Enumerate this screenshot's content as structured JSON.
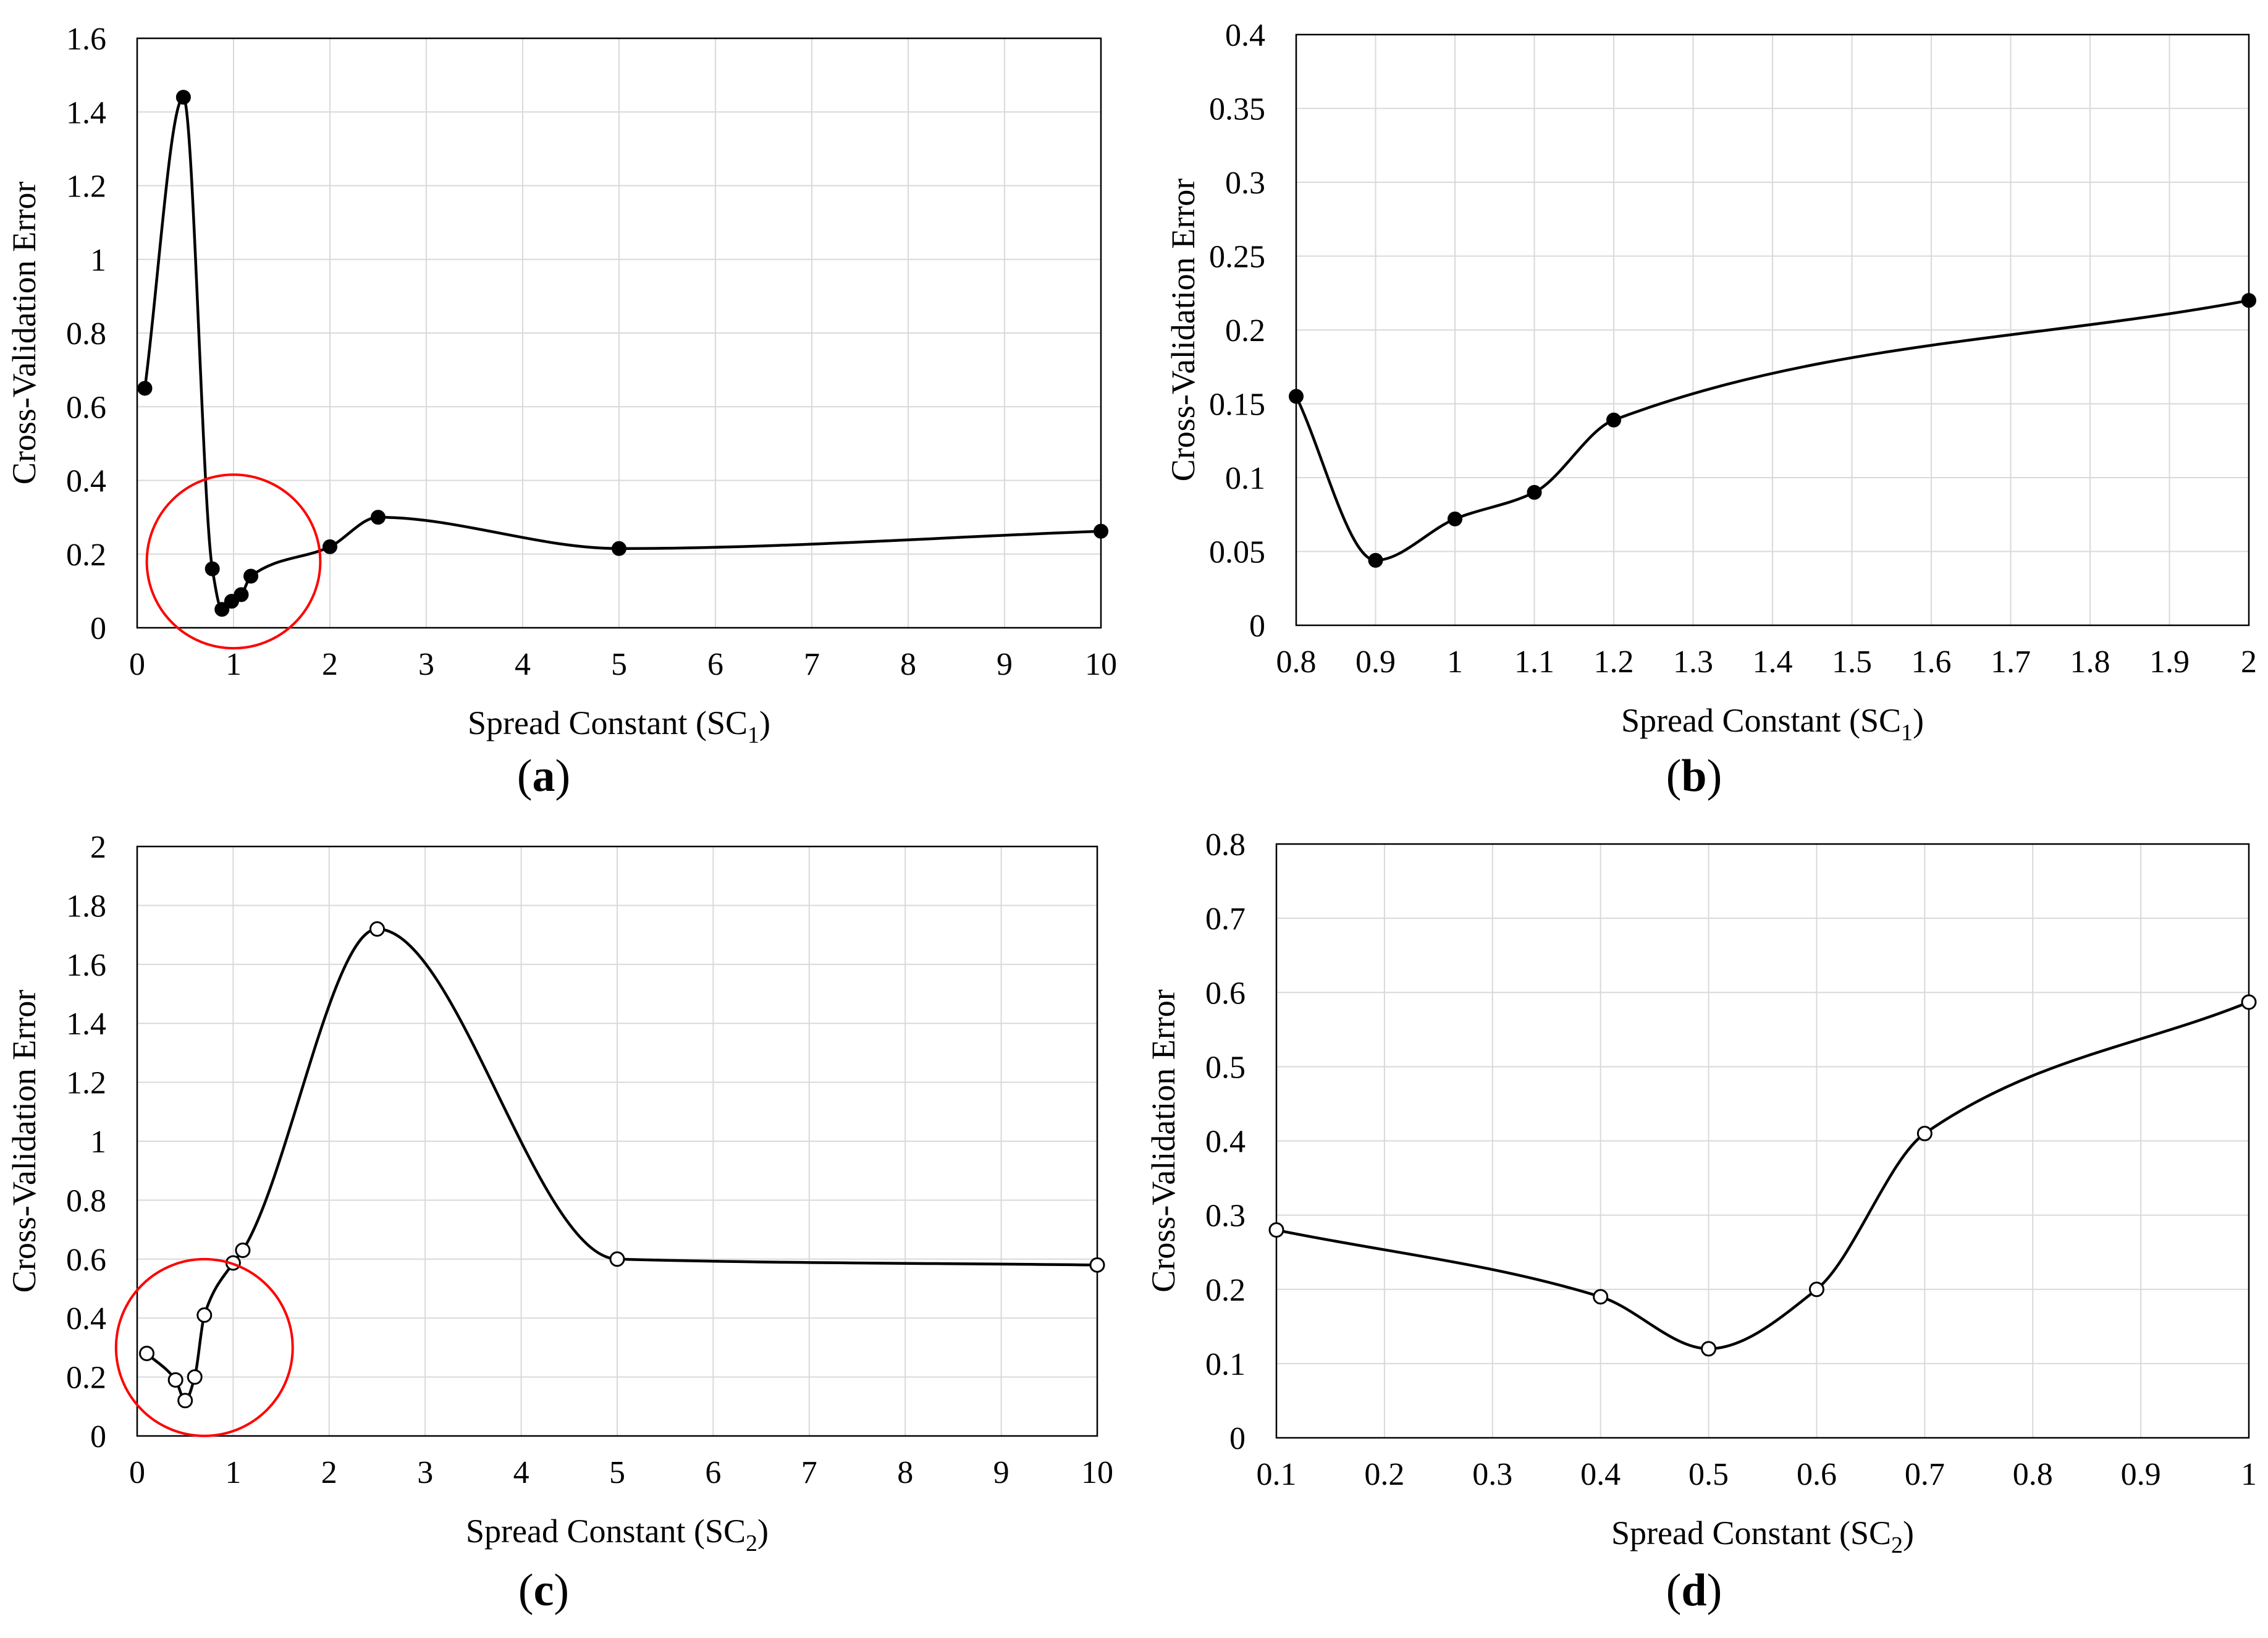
{
  "chart_data": [
    {
      "type": "line",
      "panel_label": "a",
      "xlabel": "Spread Constant (SC",
      "xlabel_sub": "1",
      "ylabel": "Cross-Validation Error",
      "xlim": [
        0,
        10
      ],
      "ylim": [
        0,
        1.6
      ],
      "xticks": [
        0,
        1,
        2,
        3,
        4,
        5,
        6,
        7,
        8,
        9,
        10
      ],
      "yticks": [
        0,
        0.2,
        0.4,
        0.6,
        0.8,
        1,
        1.2,
        1.4,
        1.6
      ],
      "marker": "filled",
      "grid": true,
      "series": [
        {
          "name": "SC1",
          "x": [
            0.08,
            0.48,
            0.78,
            0.88,
            0.98,
            1.08,
            1.18,
            2.0,
            2.5,
            5.0,
            10.0
          ],
          "y": [
            0.65,
            1.44,
            0.16,
            0.05,
            0.072,
            0.09,
            0.14,
            0.22,
            0.3,
            0.215,
            0.262
          ]
        }
      ],
      "highlight": {
        "shape": "circle",
        "color": "#ff0000",
        "cx": 1.0,
        "cy": 0.18,
        "r": 0.9
      }
    },
    {
      "type": "line",
      "panel_label": "b",
      "xlabel": "Spread Constant (SC",
      "xlabel_sub": "1",
      "ylabel": "Cross-Validation Error",
      "xlim": [
        0.8,
        2
      ],
      "ylim": [
        0,
        0.4
      ],
      "xticks": [
        0.8,
        0.9,
        1,
        1.1,
        1.2,
        1.3,
        1.4,
        1.5,
        1.6,
        1.7,
        1.8,
        1.9,
        2
      ],
      "yticks": [
        0,
        0.05,
        0.1,
        0.15,
        0.2,
        0.25,
        0.3,
        0.35,
        0.4
      ],
      "marker": "filled",
      "grid": true,
      "series": [
        {
          "name": "SC1",
          "x": [
            0.8,
            0.9,
            1.0,
            1.1,
            1.2,
            2.0
          ],
          "y": [
            0.155,
            0.044,
            0.072,
            0.09,
            0.139,
            0.22
          ]
        }
      ]
    },
    {
      "type": "line",
      "panel_label": "c",
      "xlabel": "Spread Constant (SC",
      "xlabel_sub": "2",
      "ylabel": "Cross-Validation Error",
      "xlim": [
        0,
        10
      ],
      "ylim": [
        0,
        2
      ],
      "xticks": [
        0,
        1,
        2,
        3,
        4,
        5,
        6,
        7,
        8,
        9,
        10
      ],
      "yticks": [
        0,
        0.2,
        0.4,
        0.6,
        0.8,
        1,
        1.2,
        1.4,
        1.6,
        1.8,
        2
      ],
      "marker": "open",
      "grid": true,
      "series": [
        {
          "name": "SC2",
          "x": [
            0.1,
            0.4,
            0.5,
            0.6,
            0.7,
            1.0,
            1.1,
            2.5,
            5.0,
            10.0
          ],
          "y": [
            0.28,
            0.19,
            0.12,
            0.2,
            0.41,
            0.587,
            0.63,
            1.72,
            0.6,
            0.58
          ]
        }
      ],
      "highlight": {
        "shape": "circle",
        "color": "#ff0000",
        "cx": 0.7,
        "cy": 0.3,
        "r": 0.92
      }
    },
    {
      "type": "line",
      "panel_label": "d",
      "xlabel": "Spread Constant (SC",
      "xlabel_sub": "2",
      "ylabel": "Cross-Validation Error",
      "xlim": [
        0.1,
        1
      ],
      "ylim": [
        0,
        0.8
      ],
      "xticks": [
        0.1,
        0.2,
        0.3,
        0.4,
        0.5,
        0.6,
        0.7,
        0.8,
        0.9,
        1
      ],
      "yticks": [
        0,
        0.1,
        0.2,
        0.3,
        0.4,
        0.5,
        0.6,
        0.7,
        0.8
      ],
      "marker": "open",
      "grid": true,
      "series": [
        {
          "name": "SC2",
          "x": [
            0.1,
            0.4,
            0.5,
            0.6,
            0.7,
            1.0
          ],
          "y": [
            0.28,
            0.19,
            0.12,
            0.2,
            0.41,
            0.587
          ]
        }
      ]
    }
  ]
}
